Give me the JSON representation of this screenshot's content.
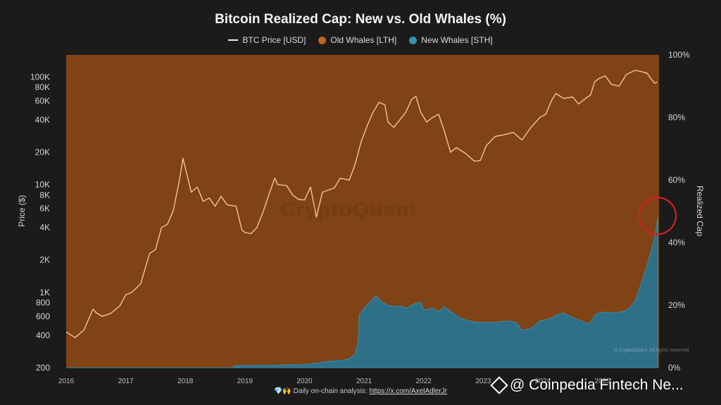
{
  "header": {
    "title": "Bitcoin Realized Cap: New vs. Old Whales (%)"
  },
  "legend": {
    "price_label": "BTC Price [USD]",
    "old_label": "Old Whales [LTH]",
    "new_label": "New Whales [STH]"
  },
  "footer": {
    "prefix_icons": "💎🙌",
    "text": "Daily on-chain analysis: ",
    "link_text": "https://x.com/AxelAdlerJr"
  },
  "watermark": {
    "text": "CryptoQuant"
  },
  "copyright": {
    "text": "© CryptoQuant. All rights reserved."
  },
  "overlay": {
    "text": "@ Coinpedia Fintech Ne..."
  },
  "colors": {
    "background": "#1b1b1b",
    "old_whales": "#7f4316",
    "new_whales": "#2f7089",
    "price_line": "#f6c494",
    "highlight_circle": "#d42020"
  },
  "chart_data": {
    "type": "area",
    "title": "Bitcoin Realized Cap: New vs. Old Whales (%)",
    "ylabel_left": "Price ($)",
    "ylabel_right": "Realized Cap",
    "y_left_scale": "log",
    "ylim_left": [
      200,
      160000
    ],
    "ylim_right": [
      0,
      100
    ],
    "left_ticks": [
      {
        "value": 200,
        "label": "200"
      },
      {
        "value": 400,
        "label": "400"
      },
      {
        "value": 600,
        "label": "600"
      },
      {
        "value": 800,
        "label": "800"
      },
      {
        "value": 1000,
        "label": "1K"
      },
      {
        "value": 2000,
        "label": "2K"
      },
      {
        "value": 4000,
        "label": "4K"
      },
      {
        "value": 6000,
        "label": "6K"
      },
      {
        "value": 8000,
        "label": "8K"
      },
      {
        "value": 10000,
        "label": "10K"
      },
      {
        "value": 20000,
        "label": "20K"
      },
      {
        "value": 40000,
        "label": "40K"
      },
      {
        "value": 60000,
        "label": "60K"
      },
      {
        "value": 80000,
        "label": "80K"
      },
      {
        "value": 100000,
        "label": "100K"
      }
    ],
    "right_ticks": [
      {
        "value": 0,
        "label": "0%"
      },
      {
        "value": 20,
        "label": "20%"
      },
      {
        "value": 40,
        "label": "40%"
      },
      {
        "value": 60,
        "label": "60%"
      },
      {
        "value": 80,
        "label": "80%"
      },
      {
        "value": 100,
        "label": "100%"
      }
    ],
    "x_ticks": [
      {
        "value": 2016,
        "label": "2016"
      },
      {
        "value": 2017,
        "label": "2017"
      },
      {
        "value": 2018,
        "label": "2018"
      },
      {
        "value": 2019,
        "label": "2019"
      },
      {
        "value": 2020,
        "label": "2020"
      },
      {
        "value": 2021,
        "label": "2021"
      },
      {
        "value": 2022,
        "label": "2022"
      },
      {
        "value": 2023,
        "label": "2023"
      },
      {
        "value": 2024,
        "label": "2024"
      },
      {
        "value": 2025,
        "label": "2025"
      }
    ],
    "xlim": [
      2016.0,
      2025.95
    ],
    "series": [
      {
        "name": "BTC Price [USD]",
        "axis": "left",
        "points": [
          [
            2016.0,
            430
          ],
          [
            2016.15,
            380
          ],
          [
            2016.3,
            450
          ],
          [
            2016.45,
            700
          ],
          [
            2016.5,
            650
          ],
          [
            2016.6,
            600
          ],
          [
            2016.75,
            640
          ],
          [
            2016.9,
            750
          ],
          [
            2017.0,
            950
          ],
          [
            2017.1,
            1000
          ],
          [
            2017.25,
            1200
          ],
          [
            2017.4,
            2300
          ],
          [
            2017.5,
            2500
          ],
          [
            2017.6,
            4000
          ],
          [
            2017.7,
            4300
          ],
          [
            2017.8,
            5800
          ],
          [
            2017.9,
            11000
          ],
          [
            2017.96,
            17500
          ],
          [
            2018.05,
            11000
          ],
          [
            2018.1,
            8500
          ],
          [
            2018.2,
            9500
          ],
          [
            2018.3,
            7000
          ],
          [
            2018.4,
            7500
          ],
          [
            2018.5,
            6300
          ],
          [
            2018.6,
            7800
          ],
          [
            2018.7,
            6500
          ],
          [
            2018.85,
            6300
          ],
          [
            2018.95,
            3800
          ],
          [
            2019.0,
            3600
          ],
          [
            2019.1,
            3500
          ],
          [
            2019.2,
            4000
          ],
          [
            2019.3,
            5500
          ],
          [
            2019.4,
            8000
          ],
          [
            2019.5,
            11500
          ],
          [
            2019.55,
            10000
          ],
          [
            2019.7,
            9800
          ],
          [
            2019.8,
            8000
          ],
          [
            2019.9,
            7300
          ],
          [
            2020.0,
            7200
          ],
          [
            2020.1,
            9500
          ],
          [
            2020.2,
            5000
          ],
          [
            2020.3,
            8500
          ],
          [
            2020.5,
            9300
          ],
          [
            2020.6,
            11500
          ],
          [
            2020.75,
            11000
          ],
          [
            2020.85,
            15500
          ],
          [
            2020.95,
            25000
          ],
          [
            2021.05,
            35000
          ],
          [
            2021.15,
            47000
          ],
          [
            2021.25,
            58000
          ],
          [
            2021.35,
            55000
          ],
          [
            2021.4,
            38000
          ],
          [
            2021.5,
            34000
          ],
          [
            2021.6,
            40000
          ],
          [
            2021.7,
            47000
          ],
          [
            2021.8,
            62000
          ],
          [
            2021.87,
            66000
          ],
          [
            2021.95,
            47000
          ],
          [
            2022.05,
            38000
          ],
          [
            2022.15,
            42000
          ],
          [
            2022.25,
            45000
          ],
          [
            2022.35,
            31000
          ],
          [
            2022.45,
            20000
          ],
          [
            2022.55,
            22000
          ],
          [
            2022.7,
            19500
          ],
          [
            2022.85,
            16500
          ],
          [
            2022.95,
            16700
          ],
          [
            2023.05,
            23000
          ],
          [
            2023.2,
            28000
          ],
          [
            2023.35,
            29000
          ],
          [
            2023.5,
            30500
          ],
          [
            2023.65,
            26000
          ],
          [
            2023.8,
            34000
          ],
          [
            2023.95,
            42000
          ],
          [
            2024.05,
            45000
          ],
          [
            2024.15,
            61000
          ],
          [
            2024.22,
            70000
          ],
          [
            2024.35,
            63000
          ],
          [
            2024.5,
            65000
          ],
          [
            2024.6,
            56000
          ],
          [
            2024.7,
            62000
          ],
          [
            2024.8,
            68000
          ],
          [
            2024.87,
            90000
          ],
          [
            2024.95,
            97000
          ],
          [
            2025.05,
            102000
          ],
          [
            2025.15,
            85000
          ],
          [
            2025.28,
            82000
          ],
          [
            2025.4,
            105000
          ],
          [
            2025.55,
            115000
          ],
          [
            2025.65,
            112000
          ],
          [
            2025.75,
            108000
          ],
          [
            2025.82,
            95000
          ],
          [
            2025.88,
            87000
          ],
          [
            2025.92,
            90000
          ]
        ]
      },
      {
        "name": "New Whales [STH]",
        "axis": "right",
        "points": [
          [
            2016.0,
            0
          ],
          [
            2018.8,
            0
          ],
          [
            2018.82,
            0.6
          ],
          [
            2019.5,
            0.8
          ],
          [
            2020.0,
            1
          ],
          [
            2020.4,
            2
          ],
          [
            2020.6,
            2.3
          ],
          [
            2020.75,
            2.8
          ],
          [
            2020.85,
            4.5
          ],
          [
            2020.9,
            8.5
          ],
          [
            2020.92,
            17
          ],
          [
            2021.0,
            19
          ],
          [
            2021.1,
            21
          ],
          [
            2021.2,
            23
          ],
          [
            2021.3,
            21
          ],
          [
            2021.4,
            20
          ],
          [
            2021.5,
            19.5
          ],
          [
            2021.6,
            19.8
          ],
          [
            2021.7,
            19
          ],
          [
            2021.85,
            20.5
          ],
          [
            2021.95,
            21
          ],
          [
            2022.0,
            18.5
          ],
          [
            2022.15,
            19
          ],
          [
            2022.25,
            18
          ],
          [
            2022.35,
            19.5
          ],
          [
            2022.45,
            18
          ],
          [
            2022.6,
            16
          ],
          [
            2022.75,
            15
          ],
          [
            2022.9,
            14.5
          ],
          [
            2023.0,
            14.5
          ],
          [
            2023.2,
            14.5
          ],
          [
            2023.4,
            15
          ],
          [
            2023.55,
            14.5
          ],
          [
            2023.65,
            12
          ],
          [
            2023.8,
            12.5
          ],
          [
            2023.95,
            15
          ],
          [
            2024.1,
            15.5
          ],
          [
            2024.25,
            17
          ],
          [
            2024.35,
            17.5
          ],
          [
            2024.5,
            16
          ],
          [
            2024.65,
            15
          ],
          [
            2024.75,
            14
          ],
          [
            2024.8,
            14.5
          ],
          [
            2024.88,
            17
          ],
          [
            2024.95,
            17.5
          ],
          [
            2025.05,
            17.8
          ],
          [
            2025.2,
            17.5
          ],
          [
            2025.35,
            18
          ],
          [
            2025.45,
            19
          ],
          [
            2025.55,
            21.5
          ],
          [
            2025.65,
            27
          ],
          [
            2025.72,
            31
          ],
          [
            2025.8,
            36
          ],
          [
            2025.88,
            42
          ],
          [
            2025.93,
            48
          ]
        ]
      },
      {
        "name": "Old Whales [LTH]",
        "axis": "right",
        "fill_to_top": true
      }
    ],
    "legend_position": "top-center",
    "grid": false
  }
}
